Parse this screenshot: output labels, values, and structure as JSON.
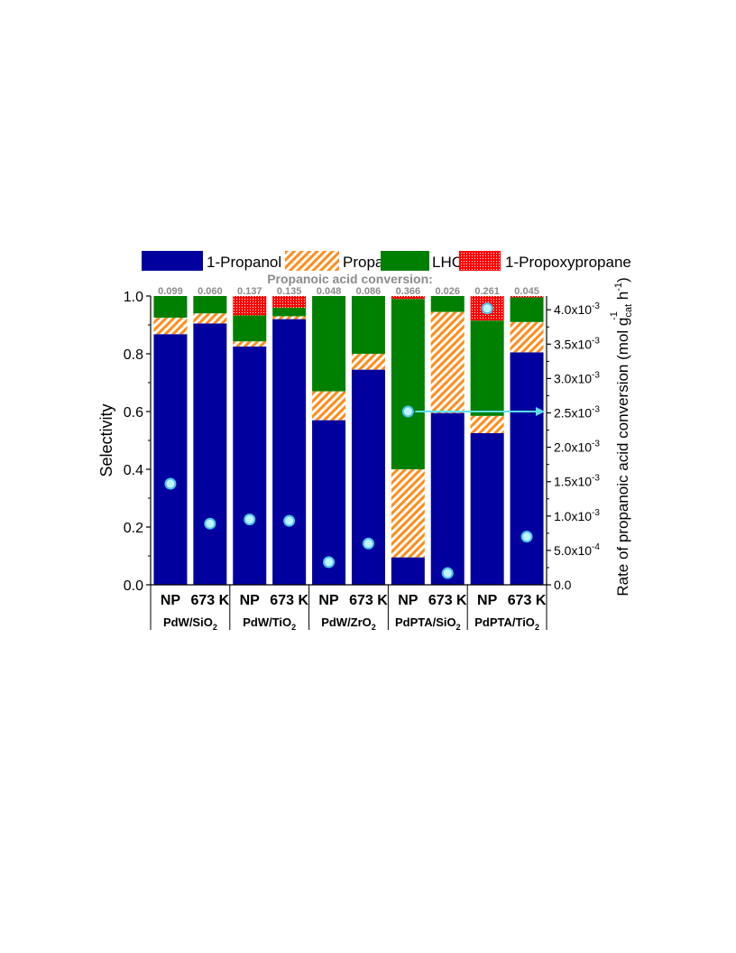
{
  "chart_data": {
    "type": "bar",
    "stacked": true,
    "legend": {
      "placement": "top",
      "entries": [
        {
          "name": "1-Propanol",
          "color": "#00009e",
          "pattern": "solid"
        },
        {
          "name": "Propanal",
          "color": "#ff8c1a",
          "pattern": "hatch"
        },
        {
          "name": "LHC",
          "color": "#008000",
          "pattern": "solid"
        },
        {
          "name": "1-Propoxypropane",
          "color": "#ff0000",
          "pattern": "dots"
        }
      ]
    },
    "conversion_title": "Propanoic acid conversion:",
    "categories": [
      "NP",
      "673 K",
      "NP",
      "673 K",
      "NP",
      "673 K",
      "NP",
      "673 K",
      "NP",
      "673 K"
    ],
    "groups": [
      {
        "label_main": "PdW/SiO",
        "label_sub": "2",
        "start": 0,
        "end": 1
      },
      {
        "label_main": "PdW/TiO",
        "label_sub": "2",
        "start": 2,
        "end": 3
      },
      {
        "label_main": "PdW/ZrO",
        "label_sub": "2",
        "start": 4,
        "end": 5
      },
      {
        "label_main": "PdPTA/SiO",
        "label_sub": "2",
        "start": 6,
        "end": 7
      },
      {
        "label_main": "PdPTA/TiO",
        "label_sub": "2",
        "start": 8,
        "end": 9
      }
    ],
    "conversion_labels": [
      "0.099",
      "0.060",
      "0.137",
      "0.135",
      "0.048",
      "0.086",
      "0.366",
      "0.026",
      "0.261",
      "0.045"
    ],
    "series": [
      {
        "name": "1-Propanol",
        "values": [
          0.868,
          0.905,
          0.825,
          0.92,
          0.57,
          0.745,
          0.095,
          0.595,
          0.525,
          0.805
        ]
      },
      {
        "name": "Propanal",
        "values": [
          0.057,
          0.035,
          0.018,
          0.01,
          0.1,
          0.055,
          0.305,
          0.35,
          0.06,
          0.105
        ]
      },
      {
        "name": "LHC",
        "values": [
          0.075,
          0.06,
          0.09,
          0.03,
          0.33,
          0.2,
          0.59,
          0.055,
          0.33,
          0.085
        ]
      },
      {
        "name": "1-Propoxypropane",
        "values": [
          0.0,
          0.0,
          0.067,
          0.04,
          0.0,
          0.0,
          0.01,
          0.0,
          0.085,
          0.005
        ]
      }
    ],
    "rate_series": {
      "values": [
        0.00147,
        0.00089,
        0.00095,
        0.00093,
        0.00033,
        0.0006,
        0.00252,
        0.00017,
        0.00402,
        0.0007
      ],
      "arrow_from_index": 6
    },
    "y_left": {
      "label": "Selectivity",
      "lim": [
        0,
        1.0
      ],
      "ticks": [
        0.0,
        0.2,
        0.4,
        0.6,
        0.8,
        1.0
      ],
      "tick_labels": [
        "0.0",
        "0.2",
        "0.4",
        "0.6",
        "0.8",
        "1.0"
      ]
    },
    "y_right": {
      "label_parts": [
        "Rate of propanoic acid conversion (mol g",
        "cat",
        " h",
        "-1",
        ")"
      ],
      "label_sup1": "-1",
      "lim": [
        0,
        0.0042
      ],
      "ticks": [
        0,
        0.0005,
        0.001,
        0.0015,
        0.002,
        0.0025,
        0.003,
        0.0035,
        0.004
      ],
      "tick_labels": [
        {
          "base": "0.0",
          "exp": ""
        },
        {
          "base": "5.0x10",
          "exp": "-4"
        },
        {
          "base": "1.0x10",
          "exp": "-3"
        },
        {
          "base": "1.5x10",
          "exp": "-3"
        },
        {
          "base": "2.0x10",
          "exp": "-3"
        },
        {
          "base": "2.5x10",
          "exp": "-3"
        },
        {
          "base": "3.0x10",
          "exp": "-3"
        },
        {
          "base": "3.5x10",
          "exp": "-3"
        },
        {
          "base": "4.0x10",
          "exp": "-3"
        }
      ]
    },
    "colors": {
      "propanol": "#00009e",
      "propanal": "#ff8c1a",
      "lhc": "#008000",
      "propoxypropane": "#ff0000",
      "rate_marker": "#bff5ff",
      "rate_marker_edge": "#4dc3e8",
      "arrow": "#5ce0ec",
      "conversion_text": "#8c8c8c"
    }
  }
}
